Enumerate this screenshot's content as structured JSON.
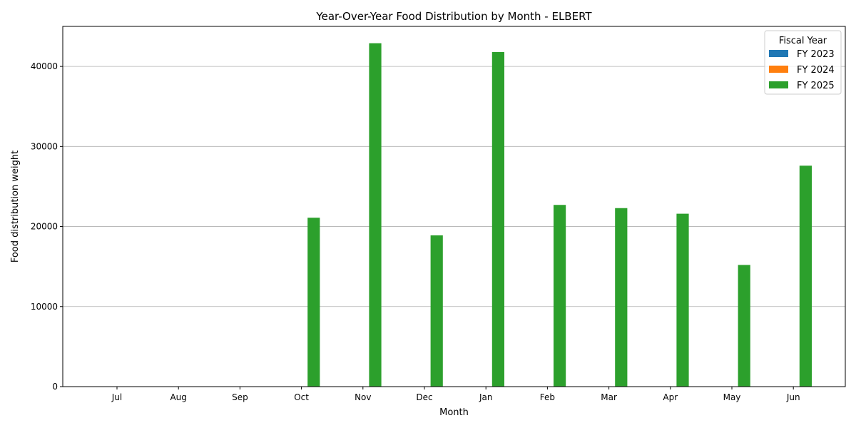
{
  "chart_data": {
    "type": "bar",
    "title": "Year-Over-Year Food Distribution by Month - ELBERT",
    "xlabel": "Month",
    "ylabel": "Food distribution weight",
    "categories": [
      "Jul",
      "Aug",
      "Sep",
      "Oct",
      "Nov",
      "Dec",
      "Jan",
      "Feb",
      "Mar",
      "Apr",
      "May",
      "Jun"
    ],
    "ylim": [
      0,
      45000
    ],
    "yticks": [
      0,
      10000,
      20000,
      30000,
      40000
    ],
    "grid": "y",
    "legend_title": "Fiscal Year",
    "legend_position": "top-right",
    "series": [
      {
        "name": "FY 2023",
        "color": "#1f77b4",
        "values": [
          0,
          0,
          0,
          0,
          0,
          0,
          0,
          0,
          0,
          0,
          0,
          0
        ]
      },
      {
        "name": "FY 2024",
        "color": "#ff7f0e",
        "values": [
          0,
          0,
          0,
          0,
          0,
          0,
          0,
          0,
          0,
          0,
          0,
          0
        ]
      },
      {
        "name": "FY 2025",
        "color": "#2ca02c",
        "values": [
          0,
          0,
          0,
          21100,
          42900,
          18900,
          41800,
          22700,
          22300,
          21600,
          15200,
          27600
        ]
      }
    ]
  }
}
